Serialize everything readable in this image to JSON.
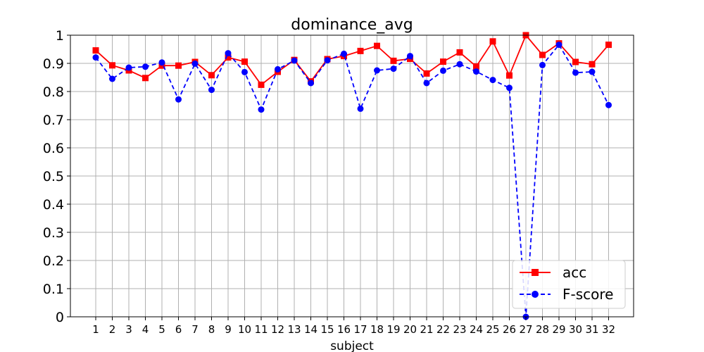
{
  "chart_data": {
    "type": "line",
    "title": "dominance_avg",
    "xlabel": "subject",
    "ylabel": "",
    "categories": [
      "1",
      "2",
      "3",
      "4",
      "5",
      "6",
      "7",
      "8",
      "9",
      "10",
      "11",
      "12",
      "13",
      "14",
      "15",
      "16",
      "17",
      "18",
      "19",
      "20",
      "21",
      "22",
      "23",
      "24",
      "25",
      "26",
      "27",
      "28",
      "29",
      "30",
      "31",
      "32"
    ],
    "ylim": [
      0,
      1
    ],
    "yticks": [
      "0",
      "0.1",
      "0.2",
      "0.3",
      "0.4",
      "0.5",
      "0.6",
      "0.7",
      "0.8",
      "0.9",
      "1"
    ],
    "grid": true,
    "legend_position": "lower-right",
    "series": [
      {
        "name": "acc",
        "color": "#ff0000",
        "marker": "square",
        "line_style": "solid",
        "values": [
          0.946,
          0.893,
          0.875,
          0.848,
          0.892,
          0.892,
          0.905,
          0.858,
          0.921,
          0.906,
          0.824,
          0.87,
          0.912,
          0.836,
          0.915,
          0.926,
          0.944,
          0.962,
          0.909,
          0.916,
          0.864,
          0.906,
          0.939,
          0.889,
          0.978,
          0.857,
          1.0,
          0.93,
          0.971,
          0.905,
          0.897,
          0.966
        ]
      },
      {
        "name": "F-score",
        "color": "#0000ff",
        "marker": "circle",
        "line_style": "dashed",
        "values": [
          0.921,
          0.845,
          0.885,
          0.888,
          0.903,
          0.772,
          0.899,
          0.806,
          0.936,
          0.869,
          0.736,
          0.879,
          0.91,
          0.83,
          0.911,
          0.934,
          0.739,
          0.875,
          0.881,
          0.926,
          0.83,
          0.874,
          0.897,
          0.871,
          0.841,
          0.813,
          0.0,
          0.894,
          0.966,
          0.867,
          0.87,
          0.752
        ]
      }
    ]
  }
}
